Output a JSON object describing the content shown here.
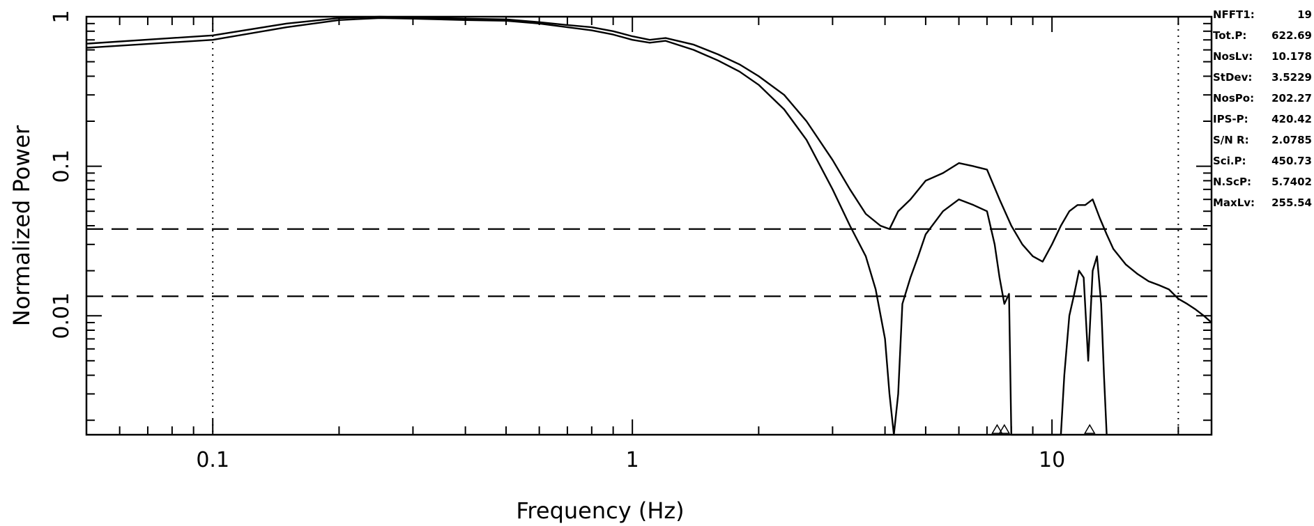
{
  "chart_data": {
    "type": "line",
    "title": "",
    "xlabel": "Frequency (Hz)",
    "ylabel": "Normalized Power",
    "xscale": "log",
    "yscale": "log",
    "xlim": [
      0.05,
      24
    ],
    "ylim": [
      0.0016,
      1
    ],
    "grid": false,
    "x_ticks": [
      {
        "value": 0.1,
        "label": "0.1"
      },
      {
        "value": 1,
        "label": "1"
      },
      {
        "value": 10,
        "label": "10"
      }
    ],
    "y_ticks": [
      {
        "value": 1,
        "label": "1"
      },
      {
        "value": 0.1,
        "label": "0.1"
      },
      {
        "value": 0.01,
        "label": "0.01"
      }
    ],
    "vertical_reference_lines": [
      0.1,
      20
    ],
    "horizontal_reference_lines": [
      0.038,
      0.0135
    ],
    "markers": [
      7.4,
      7.7,
      12.3
    ],
    "series": [
      {
        "x": [
          0.05,
          0.1,
          0.15,
          0.2,
          0.25,
          0.3,
          0.4,
          0.5,
          0.6,
          0.7,
          0.8,
          0.9,
          1.0,
          1.1,
          1.2,
          1.4,
          1.6,
          1.8,
          2.0,
          2.3,
          2.6,
          3.0,
          3.3,
          3.6,
          3.9,
          4.1,
          4.3,
          4.6,
          5.0,
          5.5,
          6.0,
          6.5,
          7.0,
          7.5,
          8.0,
          8.5,
          9.0,
          9.5,
          10.0,
          10.5,
          11.0,
          11.5,
          12.0,
          12.5,
          13.0,
          13.5,
          14.0,
          15.0,
          16.0,
          17.0,
          18.0,
          19.0,
          20.0,
          21.0,
          22.0,
          23.0,
          24.0
        ],
        "y": [
          0.66,
          0.75,
          0.9,
          0.98,
          1.0,
          0.99,
          0.97,
          0.96,
          0.92,
          0.88,
          0.85,
          0.8,
          0.74,
          0.7,
          0.72,
          0.65,
          0.56,
          0.48,
          0.4,
          0.3,
          0.2,
          0.11,
          0.07,
          0.048,
          0.04,
          0.038,
          0.05,
          0.06,
          0.08,
          0.09,
          0.105,
          0.1,
          0.095,
          0.06,
          0.04,
          0.03,
          0.025,
          0.023,
          0.03,
          0.04,
          0.05,
          0.055,
          0.055,
          0.06,
          0.045,
          0.035,
          0.028,
          0.022,
          0.019,
          0.017,
          0.016,
          0.015,
          0.013,
          0.012,
          0.011,
          0.01,
          0.009
        ]
      },
      {
        "x": [
          0.05,
          0.1,
          0.15,
          0.2,
          0.25,
          0.3,
          0.4,
          0.5,
          0.6,
          0.7,
          0.8,
          0.9,
          1.0,
          1.1,
          1.2,
          1.4,
          1.6,
          1.8,
          2.0,
          2.3,
          2.6,
          3.0,
          3.3,
          3.6,
          3.8,
          4.0,
          4.1,
          4.2,
          4.3,
          4.4,
          4.6,
          4.8,
          5.0,
          5.5,
          6.0,
          6.5,
          7.0,
          7.3,
          7.5,
          7.7,
          7.9,
          8.0,
          10.5,
          10.7,
          11.0,
          11.3,
          11.6,
          11.9,
          12.2,
          12.5,
          12.8,
          13.1,
          13.3,
          13.5
        ],
        "y": [
          0.62,
          0.7,
          0.85,
          0.95,
          0.98,
          0.97,
          0.95,
          0.94,
          0.9,
          0.85,
          0.81,
          0.76,
          0.7,
          0.67,
          0.69,
          0.6,
          0.51,
          0.43,
          0.35,
          0.24,
          0.15,
          0.07,
          0.04,
          0.025,
          0.015,
          0.007,
          0.003,
          0.0016,
          0.003,
          0.012,
          0.018,
          0.025,
          0.035,
          0.05,
          0.06,
          0.055,
          0.05,
          0.03,
          0.018,
          0.012,
          0.014,
          0.0016,
          0.0016,
          0.004,
          0.01,
          0.014,
          0.02,
          0.018,
          0.005,
          0.02,
          0.025,
          0.012,
          0.004,
          0.0016
        ]
      }
    ],
    "stats": [
      {
        "label": "NFFT1:",
        "value": "19"
      },
      {
        "label": "Tot.P:",
        "value": "622.69"
      },
      {
        "label": "NosLv:",
        "value": "10.178"
      },
      {
        "label": "StDev:",
        "value": "3.5229"
      },
      {
        "label": "NosPo:",
        "value": "202.27"
      },
      {
        "label": "IPS-P:",
        "value": "420.42"
      },
      {
        "label": "S/N R:",
        "value": "2.0785"
      },
      {
        "label": "Sci.P:",
        "value": "450.73"
      },
      {
        "label": "N.ScP:",
        "value": "5.7402"
      },
      {
        "label": "MaxLv:",
        "value": "255.54"
      }
    ]
  }
}
